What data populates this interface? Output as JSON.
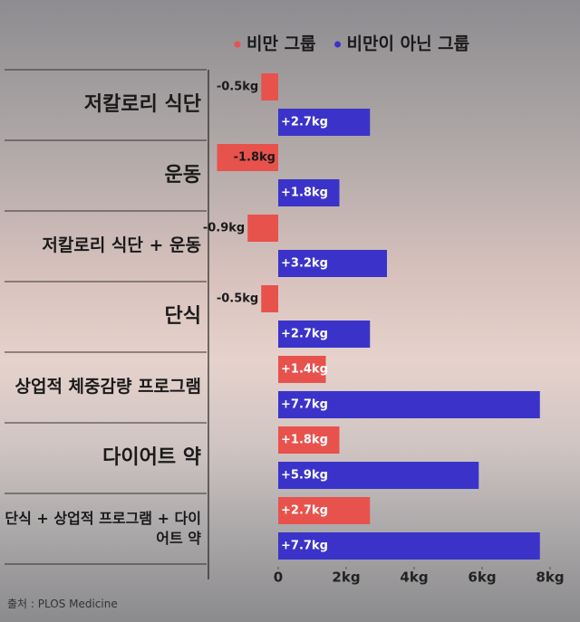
{
  "chart_data": {
    "type": "hbar",
    "categories": [
      "저칼로리 식단",
      "운동",
      "저칼로리 식단 + 운동",
      "단식",
      "상업적 체중감량 프로그램",
      "다이어트 약",
      "단식 + 상업적 프로그램 + 다이어트 약"
    ],
    "series": [
      {
        "name": "비만 그룹",
        "color": "#e8524d",
        "values": [
          -0.5,
          -1.8,
          -0.9,
          -0.5,
          1.4,
          1.8,
          2.7
        ],
        "value_labels": [
          "-0.5kg",
          "-1.8kg",
          "-0.9kg",
          "-0.5kg",
          "+1.4kg",
          "+1.8kg",
          "+2.7kg"
        ]
      },
      {
        "name": "비만이 아닌 그룹",
        "color": "#3b33c9",
        "values": [
          2.7,
          1.8,
          3.2,
          2.7,
          7.7,
          5.9,
          7.7
        ],
        "value_labels": [
          "+2.7kg",
          "+1.8kg",
          "+3.2kg",
          "+2.7kg",
          "+7.7kg",
          "+5.9kg",
          "+7.7kg"
        ]
      }
    ],
    "xlim": [
      -2,
      8.8
    ],
    "xticks": [
      0,
      {
        "value": 2,
        "label": "2kg"
      },
      {
        "value": 4,
        "label": "4kg"
      },
      {
        "value": 6,
        "label": "6kg"
      },
      {
        "value": 8,
        "label": "8kg"
      }
    ],
    "source": "출처 : PLOS Medicine"
  }
}
